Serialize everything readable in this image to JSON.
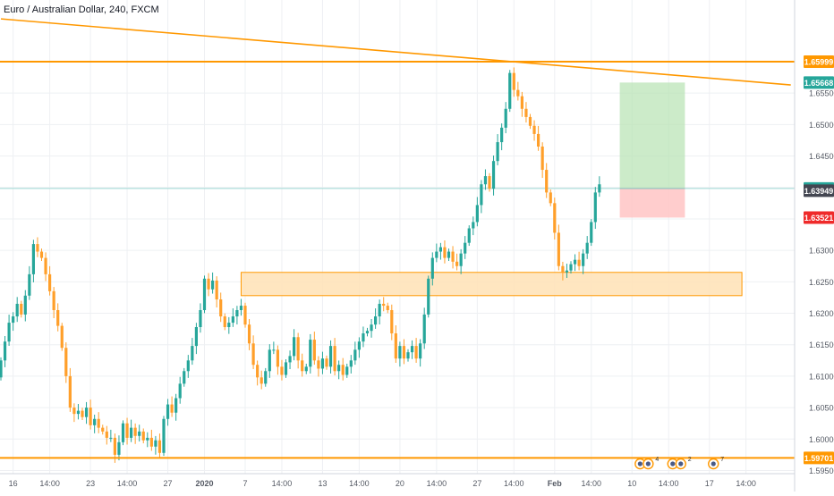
{
  "symbol_title": "Euro / Australian Dollar, 240, FXCM",
  "colors": {
    "up": "#26a69a",
    "down": "#ff9f2a",
    "line": "#ff9800",
    "grid": "#eef0f3",
    "axis_text": "#555a64",
    "current_price_line": "#9ed9d4",
    "target_zone": "#b7e2b2",
    "stop_zone": "#ffc4c4",
    "support_zone": "#ffe2b5"
  },
  "chart_data": {
    "type": "candlestick",
    "ylim": [
      1.5945,
      1.6698
    ],
    "y_ticks": [
      "1.65500",
      "1.65000",
      "1.64500",
      "1.64000",
      "1.63500",
      "1.63000",
      "1.62500",
      "1.62000",
      "1.61500",
      "1.61000",
      "1.60500",
      "1.60000",
      "1.59500"
    ],
    "y_tick_values": [
      1.655,
      1.65,
      1.645,
      1.64,
      1.635,
      1.63,
      1.625,
      1.62,
      1.615,
      1.61,
      1.605,
      1.6,
      1.595
    ],
    "x_ticks": [
      "16",
      "14:00",
      "23",
      "14:00",
      "27",
      "2020",
      "7",
      "14:00",
      "13",
      "14:00",
      "20",
      "14:00",
      "27",
      "14:00",
      "Feb",
      "14:00",
      "10",
      "14:00",
      "17",
      "14:00"
    ],
    "x_tick_bars": [
      3,
      12,
      22,
      31,
      41,
      50,
      60,
      69,
      79,
      88,
      98,
      107,
      117,
      126,
      136,
      145,
      155,
      164,
      174,
      183
    ],
    "closes": [
      1.6125,
      1.6155,
      1.6185,
      1.6195,
      1.6215,
      1.6198,
      1.6228,
      1.6262,
      1.631,
      1.6298,
      1.6288,
      1.6262,
      1.6235,
      1.6205,
      1.618,
      1.6145,
      1.61,
      1.605,
      1.604,
      1.6045,
      1.6035,
      1.605,
      1.6022,
      1.6032,
      1.6018,
      1.6012,
      1.6002,
      1.6002,
      1.5975,
      1.5995,
      1.6025,
      1.6002,
      1.6018,
      1.6005,
      1.6012,
      1.5998,
      1.6002,
      1.5988,
      1.5998,
      1.5978,
      1.6032,
      1.6055,
      1.6042,
      1.6065,
      1.6088,
      1.6108,
      1.6125,
      1.6148,
      1.6178,
      1.6205,
      1.6255,
      1.6238,
      1.6252,
      1.6222,
      1.6195,
      1.6178,
      1.6185,
      1.6195,
      1.6205,
      1.6212,
      1.6182,
      1.6152,
      1.6118,
      1.6098,
      1.6088,
      1.6108,
      1.6142,
      1.6142,
      1.6115,
      1.6102,
      1.6122,
      1.6132,
      1.6162,
      1.6125,
      1.6108,
      1.6115,
      1.6158,
      1.6125,
      1.6112,
      1.6128,
      1.6115,
      1.6148,
      1.6108,
      1.6118,
      1.6102,
      1.6115,
      1.6125,
      1.6142,
      1.6155,
      1.6168,
      1.6172,
      1.6182,
      1.6195,
      1.6215,
      1.6212,
      1.6205,
      1.6168,
      1.6128,
      1.6148,
      1.6128,
      1.6138,
      1.6148,
      1.6128,
      1.6152,
      1.6198,
      1.6255,
      1.6288,
      1.6298,
      1.6305,
      1.6288,
      1.6298,
      1.6282,
      1.6275,
      1.6295,
      1.6312,
      1.6335,
      1.6345,
      1.6372,
      1.6405,
      1.6418,
      1.6398,
      1.6442,
      1.6472,
      1.6495,
      1.6525,
      1.6582,
      1.6555,
      1.6545,
      1.6525,
      1.6512,
      1.6498,
      1.6485,
      1.6465,
      1.6428,
      1.6392,
      1.6375,
      1.6328,
      1.6275,
      1.6265,
      1.6268,
      1.6278,
      1.6285,
      1.6275,
      1.6295,
      1.6312,
      1.6345,
      1.6392,
      1.6405
    ],
    "opens": [
      1.6098,
      1.6125,
      1.6155,
      1.6185,
      1.6195,
      1.6215,
      1.6198,
      1.6228,
      1.6262,
      1.631,
      1.6298,
      1.6288,
      1.6262,
      1.6235,
      1.6205,
      1.618,
      1.6145,
      1.61,
      1.605,
      1.604,
      1.6045,
      1.6035,
      1.605,
      1.6022,
      1.6032,
      1.6018,
      1.6012,
      1.6002,
      1.6002,
      1.5975,
      1.5995,
      1.6025,
      1.6002,
      1.6018,
      1.6005,
      1.6012,
      1.5998,
      1.6002,
      1.5988,
      1.5998,
      1.5978,
      1.6032,
      1.6055,
      1.6042,
      1.6065,
      1.6088,
      1.6108,
      1.6125,
      1.6148,
      1.6178,
      1.6205,
      1.6255,
      1.6238,
      1.6252,
      1.6222,
      1.6195,
      1.6178,
      1.6185,
      1.6195,
      1.6205,
      1.6212,
      1.6182,
      1.6152,
      1.6118,
      1.6098,
      1.6088,
      1.6108,
      1.6142,
      1.6142,
      1.6115,
      1.6102,
      1.6122,
      1.6132,
      1.6162,
      1.6125,
      1.6108,
      1.6115,
      1.6158,
      1.6125,
      1.6112,
      1.6128,
      1.6115,
      1.6148,
      1.6108,
      1.6118,
      1.6102,
      1.6115,
      1.6125,
      1.6142,
      1.6155,
      1.6168,
      1.6172,
      1.6182,
      1.6195,
      1.6215,
      1.6212,
      1.6205,
      1.6168,
      1.6128,
      1.6148,
      1.6128,
      1.6138,
      1.6148,
      1.6128,
      1.6152,
      1.6198,
      1.6255,
      1.6288,
      1.6298,
      1.6305,
      1.6288,
      1.6298,
      1.6282,
      1.6275,
      1.6295,
      1.6312,
      1.6335,
      1.6345,
      1.6372,
      1.6405,
      1.6418,
      1.6398,
      1.6442,
      1.6472,
      1.6495,
      1.6525,
      1.6582,
      1.6555,
      1.6545,
      1.6525,
      1.6512,
      1.6498,
      1.6485,
      1.6465,
      1.6428,
      1.6392,
      1.6375,
      1.6328,
      1.6275,
      1.6265,
      1.6268,
      1.6278,
      1.6285,
      1.6275,
      1.6295,
      1.6312,
      1.6345,
      1.6392
    ],
    "wick": 0.0012,
    "horizontal_lines": [
      {
        "value": 1.65999,
        "label": "1.65999",
        "color": "#ff9800"
      },
      {
        "value": 1.59701,
        "label": "1.59701",
        "color": "#ff9800"
      }
    ],
    "trendline": {
      "from_bar": 0,
      "from_value": 1.6668,
      "to_bar": 194,
      "to_value": 1.6563
    },
    "support_zone": {
      "from_bar": 59,
      "to_bar": 182,
      "low": 1.6228,
      "high": 1.6265
    },
    "position": {
      "from_bar": 152,
      "to_bar": 168,
      "target": 1.65668,
      "entry": 1.63984,
      "stop": 1.63521
    },
    "price_labels": [
      {
        "value": 1.65999,
        "text": "1.65999",
        "bg": "#ff9800",
        "fg": "#ffffff"
      },
      {
        "value": 1.65668,
        "text": "1.65668",
        "bg": "#26a69a",
        "fg": "#ffffff"
      },
      {
        "value": 1.63984,
        "text": "1.63984",
        "bg": "#26a69a",
        "fg": "#ffffff"
      },
      {
        "value": 1.63949,
        "text": "1.63949",
        "bg": "#434651",
        "fg": "#ffffff"
      },
      {
        "value": 1.63521,
        "text": "1.63521",
        "bg": "#ef2a2a",
        "fg": "#ffffff"
      },
      {
        "value": 1.59701,
        "text": "1.59701",
        "bg": "#ff9800",
        "fg": "#ffffff"
      }
    ],
    "event_markers": [
      {
        "bar": 157,
        "icons": 2,
        "count": "4"
      },
      {
        "bar": 165,
        "icons": 2,
        "count": "2"
      },
      {
        "bar": 175,
        "icons": 1,
        "count": "7"
      }
    ]
  }
}
